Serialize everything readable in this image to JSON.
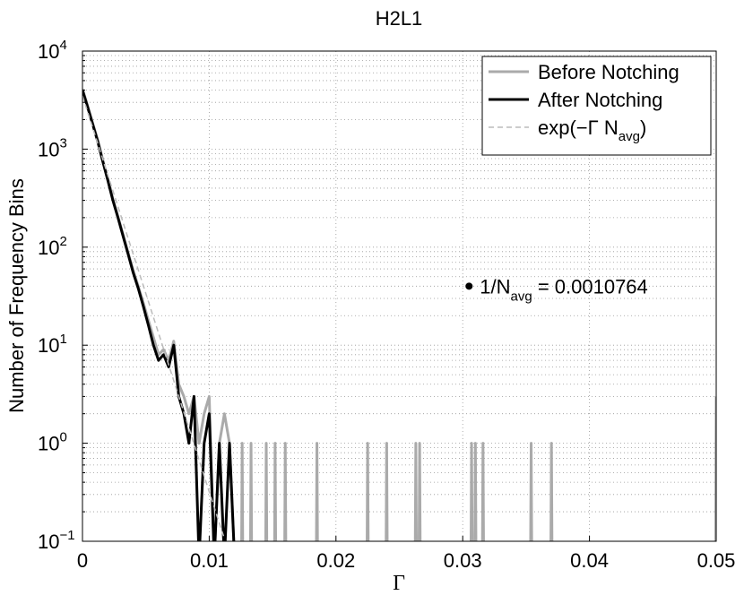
{
  "chart_data": {
    "type": "line",
    "title": "H2L1",
    "xlabel": "Γ",
    "ylabel": "Number of Frequency Bins",
    "log_y": true,
    "grid": true,
    "minor_grid": true,
    "legend": "upper right",
    "xlim": [
      0,
      0.05
    ],
    "xticks": [
      0,
      0.01,
      0.02,
      0.03,
      0.04,
      0.05
    ],
    "ylim": [
      0.1,
      10000
    ],
    "yticks": [
      {
        "value": 0.1,
        "label": "10",
        "exp": "−1"
      },
      {
        "value": 1,
        "label": "10",
        "exp": "0"
      },
      {
        "value": 10,
        "label": "10",
        "exp": "1"
      },
      {
        "value": 100,
        "label": "10",
        "exp": "2"
      },
      {
        "value": 1000,
        "label": "10",
        "exp": "3"
      },
      {
        "value": 10000,
        "label": "10",
        "exp": "4"
      }
    ],
    "series": [
      {
        "name": "Before Notching",
        "color": "#aaaaaa",
        "width": 3,
        "dash": false,
        "x": [
          0,
          0.0004,
          0.0008,
          0.0012,
          0.0016,
          0.002,
          0.0024,
          0.0028,
          0.0032,
          0.0036,
          0.004,
          0.0044,
          0.0048,
          0.0052,
          0.0056,
          0.006,
          0.0064,
          0.0068,
          0.0072,
          0.0076,
          0.008,
          0.0084,
          0.0088,
          0.0092,
          0.0096,
          0.01,
          0.0104,
          0.0108,
          0.0112,
          0.0116,
          0.012,
          0.01255,
          0.0126,
          0.01265,
          0.01325,
          0.0133,
          0.01335,
          0.01445,
          0.0145,
          0.01455,
          0.01515,
          0.0152,
          0.01525,
          0.01595,
          0.016,
          0.01605,
          0.01845,
          0.0185,
          0.01855,
          0.02245,
          0.0225,
          0.02255,
          0.02395,
          0.024,
          0.02405,
          0.02625,
          0.0263,
          0.02635,
          0.02655,
          0.0266,
          0.02665,
          0.03065,
          0.0307,
          0.03075,
          0.03095,
          0.031,
          0.03105,
          0.03155,
          0.0316,
          0.03165,
          0.03535,
          0.0354,
          0.03545,
          0.03695,
          0.037,
          0.03705,
          0.04995,
          0.05
        ],
        "values": [
          4100,
          2800,
          1850,
          1250,
          780,
          500,
          310,
          205,
          135,
          88,
          58,
          40,
          27,
          18,
          12,
          8,
          9,
          7,
          11,
          4,
          3,
          2,
          3,
          1,
          2,
          3,
          0,
          1,
          2,
          1,
          0,
          0,
          1,
          0,
          0,
          1,
          0,
          0,
          1,
          0,
          0,
          1,
          0,
          0,
          1,
          0,
          0,
          1,
          0,
          0,
          1,
          0,
          0,
          1,
          0,
          0,
          1,
          0,
          0,
          1,
          0,
          0,
          1,
          0,
          0,
          1,
          0,
          0,
          1,
          0,
          0,
          1,
          0,
          0,
          1,
          0,
          0,
          3
        ]
      },
      {
        "name": "After Notching",
        "color": "#000000",
        "width": 3,
        "dash": false,
        "x": [
          0,
          0.0004,
          0.0008,
          0.0012,
          0.0016,
          0.002,
          0.0024,
          0.0028,
          0.0032,
          0.0036,
          0.004,
          0.0044,
          0.0048,
          0.0052,
          0.0056,
          0.006,
          0.0064,
          0.0068,
          0.0072,
          0.0076,
          0.008,
          0.0084,
          0.0088,
          0.0092,
          0.0096,
          0.01,
          0.0104,
          0.0108,
          0.0112,
          0.0116,
          0.012
        ],
        "values": [
          4000,
          2700,
          1800,
          1200,
          750,
          480,
          300,
          200,
          130,
          85,
          55,
          38,
          25,
          16,
          10,
          7,
          8,
          6,
          10,
          3,
          2,
          1,
          3,
          0,
          1,
          2,
          0,
          1,
          0,
          1,
          0
        ]
      },
      {
        "name": "exp(−Γ N",
        "name_sub": "avg",
        "name_suffix": ")",
        "color": "#bbbbbb",
        "width": 1.5,
        "dash": true,
        "x": [
          0,
          0.002,
          0.004,
          0.006,
          0.008,
          0.01,
          0.0112
        ],
        "values": [
          3500,
          546,
          85.1,
          13.3,
          2.07,
          0.32,
          0.106
        ]
      }
    ],
    "annotation": {
      "x": 0.0305,
      "y": 40,
      "text": "1/N",
      "sub": "avg",
      "suffix": " = 0.0010764"
    }
  }
}
